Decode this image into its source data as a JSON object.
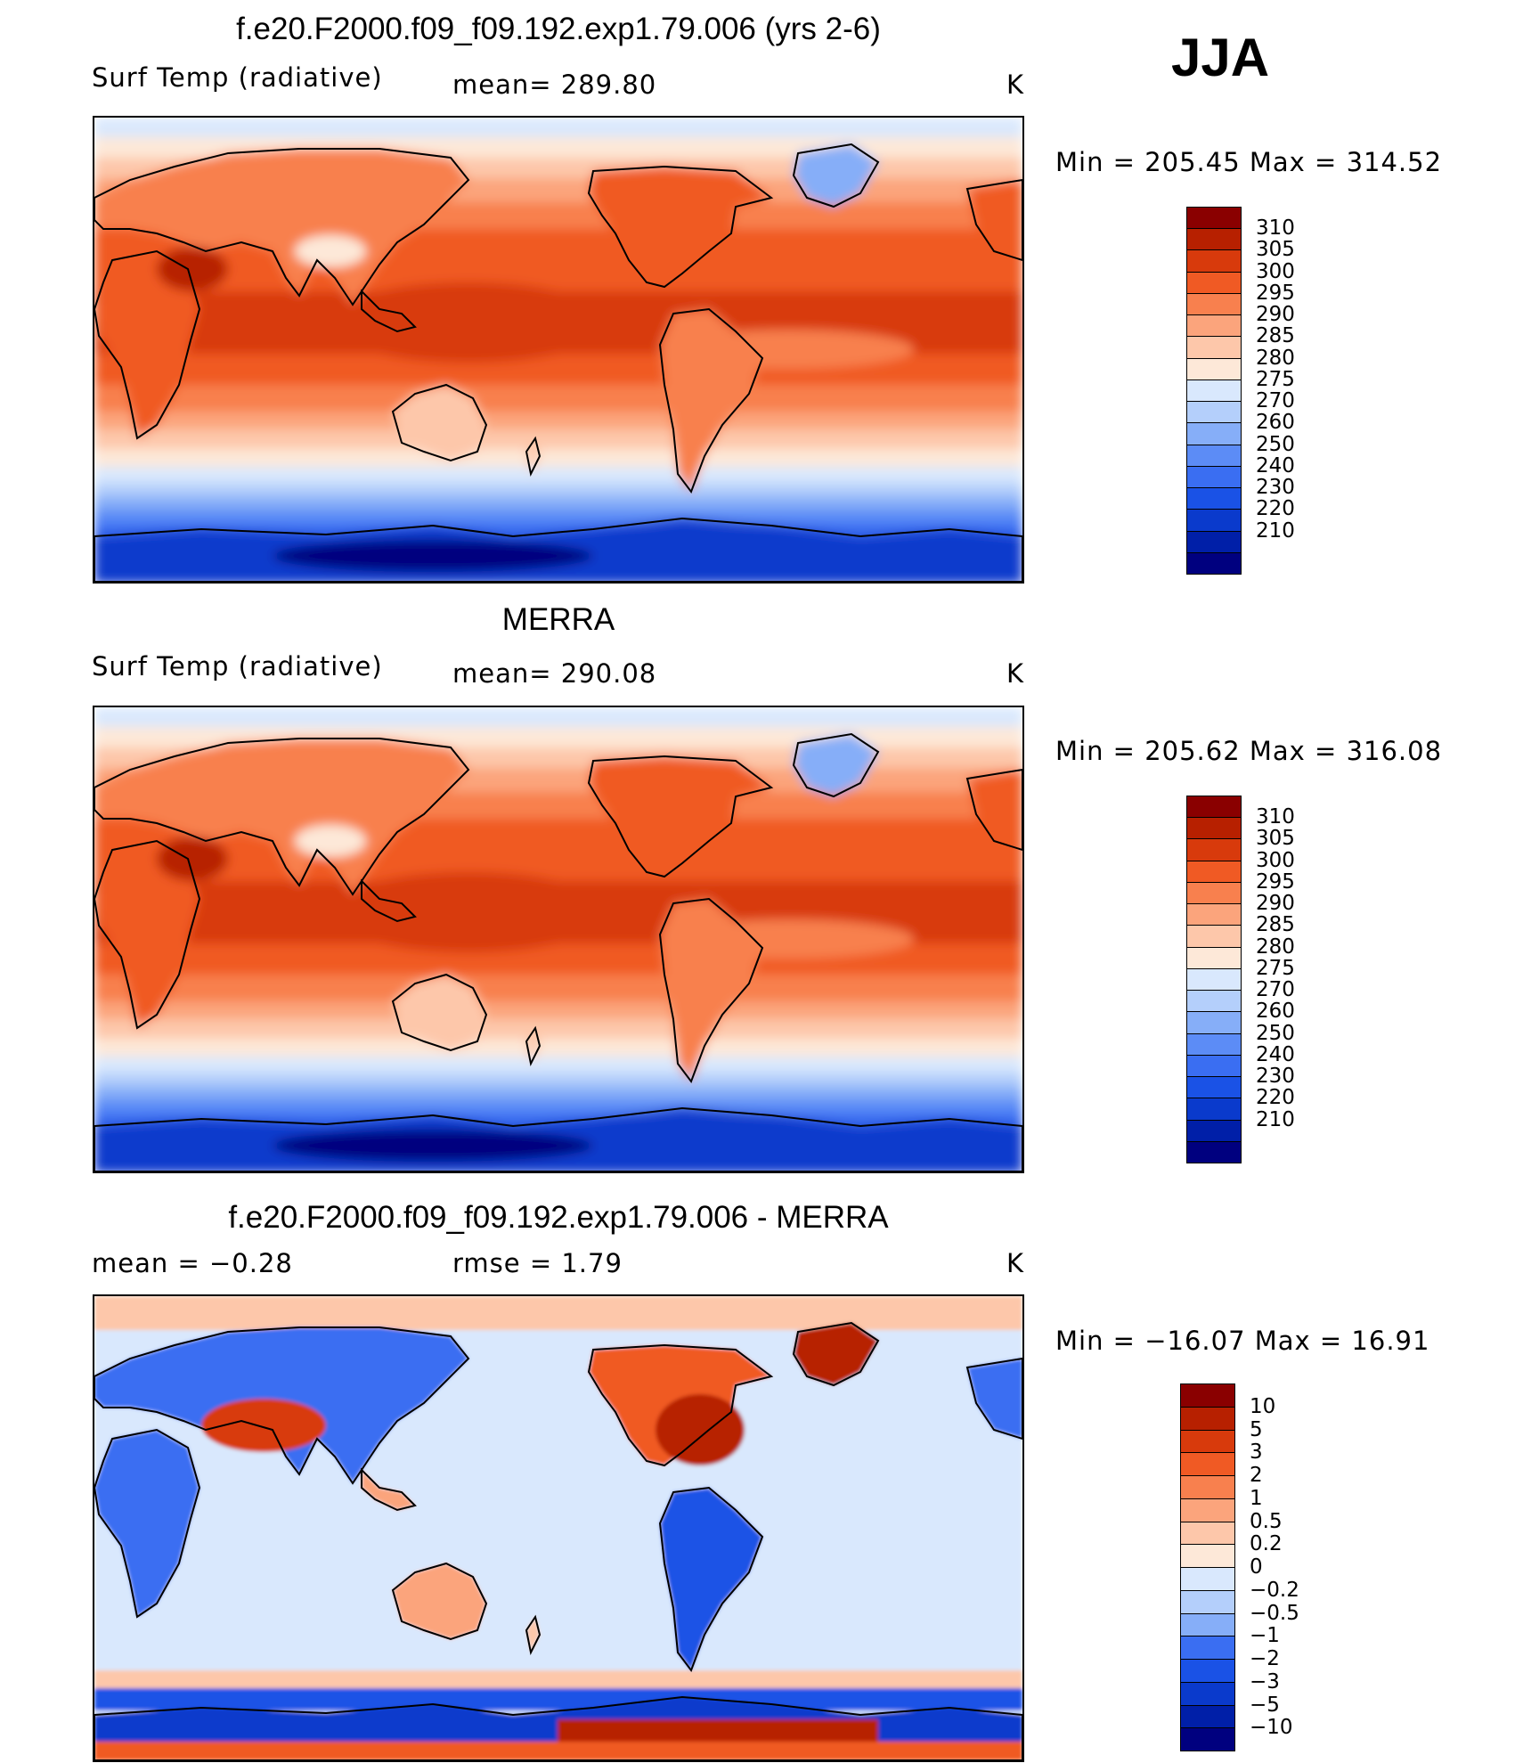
{
  "season": "JJA",
  "colors": {
    "abs_scale": [
      "#00007f",
      "#001fa8",
      "#0a3acc",
      "#1a52e6",
      "#3a6ef2",
      "#5c8cf6",
      "#86aef8",
      "#b4cffb",
      "#d9e8fd",
      "#fde8d8",
      "#fdc7aa",
      "#fba47c",
      "#f8804e",
      "#f05a24",
      "#d83a0c",
      "#b72000",
      "#8a0000"
    ],
    "diff_scale": [
      "#00007f",
      "#001fa8",
      "#0a3acc",
      "#1a52e6",
      "#3a6ef2",
      "#86aef8",
      "#b4cffb",
      "#d9e8fd",
      "#fde8d8",
      "#fdc7aa",
      "#fba47c",
      "#f8804e",
      "#f05a24",
      "#d83a0c",
      "#b72000",
      "#8a0000"
    ],
    "coastline": "#000000"
  },
  "panels": [
    {
      "id": "model",
      "title": "f.e20.F2000.f09_f09.192.exp1.79.006 (yrs 2-6)",
      "left_label": "Surf Temp (radiative)",
      "mid_label": "mean= 289.80",
      "right_label": "K",
      "minmax": "Min = 205.45 Max = 314.52",
      "ticks": [
        "310",
        "305",
        "300",
        "295",
        "290",
        "285",
        "280",
        "275",
        "270",
        "260",
        "250",
        "240",
        "230",
        "220",
        "210"
      ]
    },
    {
      "id": "merra",
      "title": "MERRA",
      "left_label": "Surf Temp (radiative)",
      "mid_label": "mean= 290.08",
      "right_label": "K",
      "minmax": "Min = 205.62 Max = 316.08",
      "ticks": [
        "310",
        "305",
        "300",
        "295",
        "290",
        "285",
        "280",
        "275",
        "270",
        "260",
        "250",
        "240",
        "230",
        "220",
        "210"
      ]
    },
    {
      "id": "diff",
      "title": "f.e20.F2000.f09_f09.192.exp1.79.006 - MERRA",
      "left_label": "mean = −0.28",
      "mid_label": "rmse = 1.79",
      "right_label": "K",
      "minmax": "Min = −16.07 Max = 16.91",
      "ticks": [
        "10",
        "5",
        "3",
        "2",
        "1",
        "0.5",
        "0.2",
        "0",
        "−0.2",
        "−0.5",
        "−1",
        "−2",
        "−3",
        "−5",
        "−10"
      ]
    }
  ]
}
